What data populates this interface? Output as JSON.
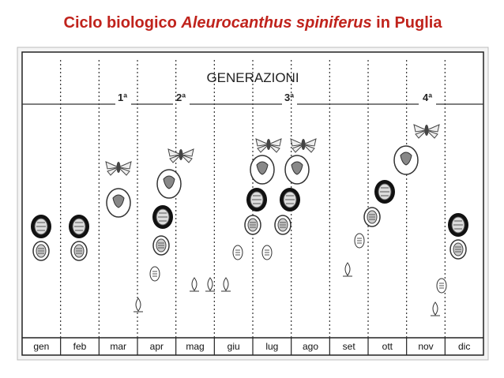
{
  "title": {
    "part1": "Ciclo biologico",
    "species": "Aleurocanthus spiniferus",
    "part2": "in Puglia"
  },
  "diagram": {
    "heading": "GENERAZIONI",
    "generations": [
      "1ª",
      "2ª",
      "3ª",
      "4ª"
    ],
    "months": [
      "gen",
      "feb",
      "mar",
      "apr",
      "mag",
      "giu",
      "lug",
      "ago",
      "set",
      "ott",
      "nov",
      "dic"
    ]
  }
}
